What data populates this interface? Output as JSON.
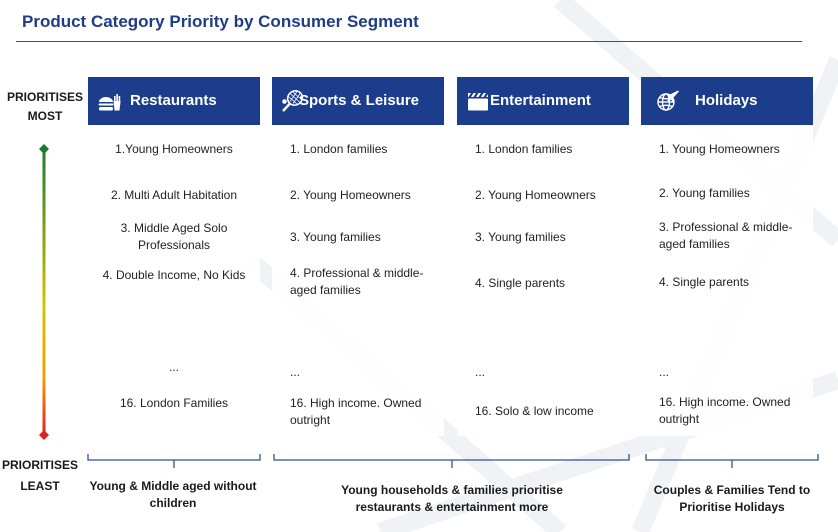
{
  "title": "Product Category Priority by Consumer Segment",
  "axis": {
    "top_line1": "PRIORITISES",
    "top_line2": "MOST",
    "bottom_line1": "PRIORITISES",
    "bottom_line2": "LEAST",
    "gradient_colors": [
      "#1a7a2e",
      "#f2c200",
      "#e02020"
    ]
  },
  "colors": {
    "header": "#1c3c8c",
    "title": "#1f3c88"
  },
  "columns": [
    {
      "title": "Restaurants",
      "icon": "burger-fries-icon",
      "items": [
        "1.Young Homeowners",
        "2. Multi Adult Habitation",
        "3. Middle Aged Solo Professionals",
        "4. Double Income, No Kids",
        "...",
        "16. London Families"
      ]
    },
    {
      "title": "Sports & Leisure",
      "icon": "tennis-racket-icon",
      "items": [
        "1. London families",
        "2. Young Homeowners",
        "3. Young families",
        "4. Professional & middle-aged families",
        "...",
        "16. High income. Owned outright"
      ]
    },
    {
      "title": "Entertainment",
      "icon": "clapperboard-icon",
      "items": [
        "1. London families",
        "2. Young Homeowners",
        "3. Young families",
        "4. Single parents",
        "...",
        "16. Solo & low income"
      ]
    },
    {
      "title": "Holidays",
      "icon": "globe-plane-icon",
      "items": [
        "1. Young Homeowners",
        "2. Young families",
        "3. Professional & middle-aged families",
        "4. Single parents",
        "...",
        "16. High income. Owned outright"
      ]
    }
  ],
  "footers": [
    {
      "line1": "Young & Middle aged without",
      "line2": "children"
    },
    {
      "line1": "Young households & families prioritise",
      "line2": "restaurants & entertainment more"
    },
    {
      "line1": "Couples & Families Tend to",
      "line2": "Prioritise Holidays"
    }
  ]
}
